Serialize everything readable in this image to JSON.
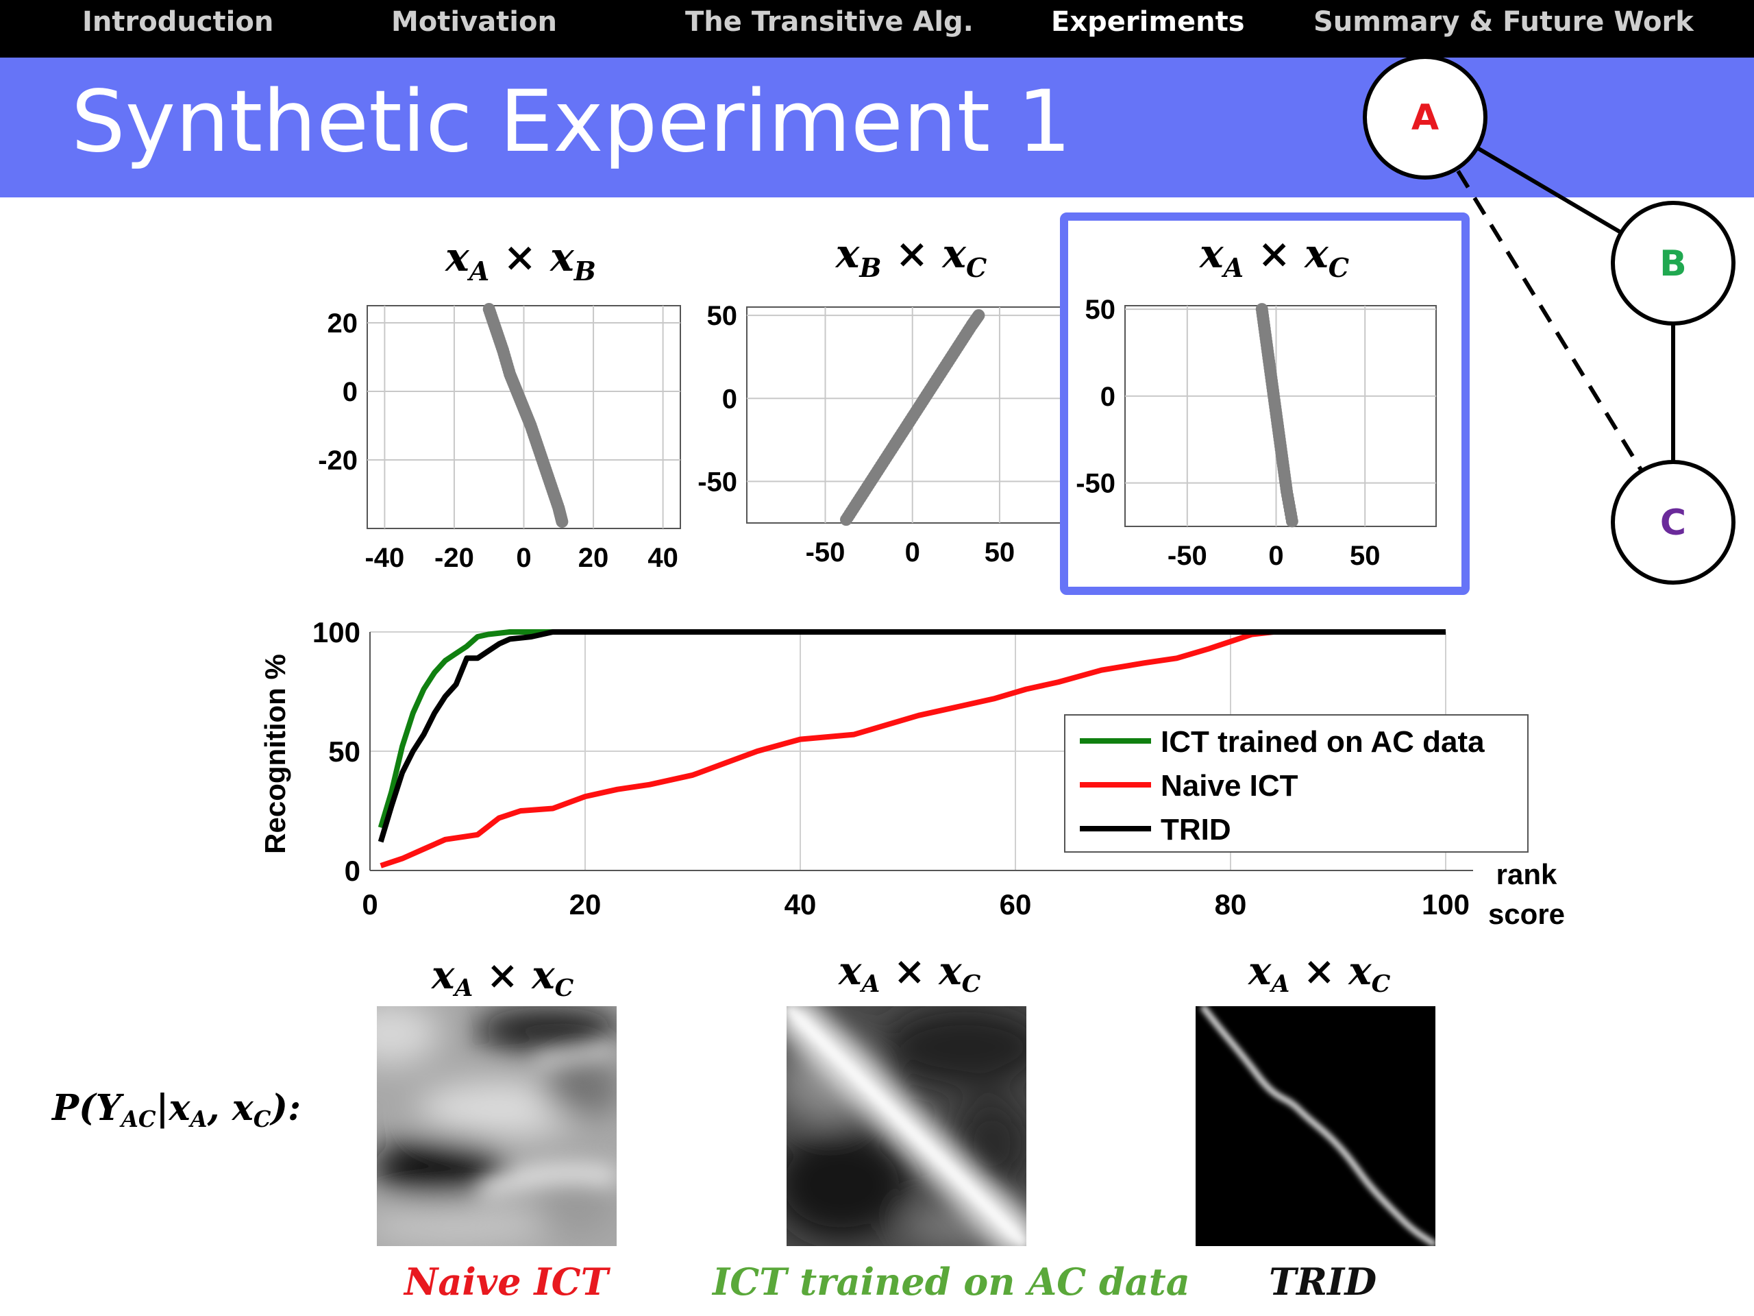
{
  "nav": {
    "items": [
      {
        "label": "Introduction",
        "active": false
      },
      {
        "label": "Motivation",
        "active": false
      },
      {
        "label": "The Transitive Alg.",
        "active": false
      },
      {
        "label": "Experiments",
        "active": true
      },
      {
        "label": "Summary & Future Work",
        "active": false
      }
    ]
  },
  "slide": {
    "title": "Synthetic Experiment 1",
    "accent_color": "#6674f7"
  },
  "graph": {
    "nodes": [
      {
        "label": "A",
        "color": "#e8191f"
      },
      {
        "label": "B",
        "color": "#20a850"
      },
      {
        "label": "C",
        "color": "#6a2a9a"
      }
    ],
    "edges": [
      {
        "from": "A",
        "to": "B",
        "style": "solid"
      },
      {
        "from": "B",
        "to": "C",
        "style": "solid"
      },
      {
        "from": "A",
        "to": "C",
        "style": "dashed"
      }
    ]
  },
  "chart_data": [
    {
      "type": "scatter",
      "title": {
        "var1": "x",
        "sub1": "A",
        "var2": "x",
        "sub2": "B"
      },
      "xlim": [
        -45,
        45
      ],
      "ylim": [
        -40,
        25
      ],
      "xticks": [
        -40,
        -20,
        0,
        20,
        40
      ],
      "yticks": [
        -20,
        0,
        20
      ],
      "grid": true,
      "highlighted": false,
      "color": "#808080",
      "points": [
        [
          -10,
          24
        ],
        [
          -8,
          18
        ],
        [
          -6,
          12
        ],
        [
          -4,
          5
        ],
        [
          -2,
          0
        ],
        [
          0,
          -5
        ],
        [
          2,
          -10
        ],
        [
          4,
          -16
        ],
        [
          6,
          -22
        ],
        [
          8,
          -28
        ],
        [
          10,
          -34
        ],
        [
          11,
          -38
        ]
      ]
    },
    {
      "type": "scatter",
      "title": {
        "var1": "x",
        "sub1": "B",
        "var2": "x",
        "sub2": "C"
      },
      "xlim": [
        -95,
        85
      ],
      "ylim": [
        -75,
        55
      ],
      "xticks": [
        -50,
        0,
        50
      ],
      "yticks": [
        -50,
        0,
        50
      ],
      "grid": true,
      "highlighted": false,
      "color": "#808080",
      "points": [
        [
          -38,
          -73
        ],
        [
          -30,
          -60
        ],
        [
          -22,
          -47
        ],
        [
          -14,
          -34
        ],
        [
          -6,
          -21
        ],
        [
          2,
          -8
        ],
        [
          10,
          5
        ],
        [
          18,
          18
        ],
        [
          26,
          31
        ],
        [
          34,
          44
        ],
        [
          38,
          50
        ]
      ]
    },
    {
      "type": "scatter",
      "title": {
        "var1": "x",
        "sub1": "A",
        "var2": "x",
        "sub2": "C"
      },
      "xlim": [
        -85,
        90
      ],
      "ylim": [
        -75,
        52
      ],
      "xticks": [
        -50,
        0,
        50
      ],
      "yticks": [
        -50,
        0,
        50
      ],
      "grid": true,
      "highlighted": true,
      "color": "#808080",
      "points": [
        [
          -8,
          50
        ],
        [
          -6,
          35
        ],
        [
          -4,
          20
        ],
        [
          -2,
          5
        ],
        [
          0,
          -10
        ],
        [
          2,
          -25
        ],
        [
          4,
          -40
        ],
        [
          6,
          -55
        ],
        [
          9,
          -72
        ]
      ]
    },
    {
      "type": "line",
      "ylabel": "Recognition %",
      "xlabel": "rank score",
      "xlim": [
        0,
        100
      ],
      "ylim": [
        0,
        100
      ],
      "xticks": [
        0,
        20,
        40,
        60,
        80,
        100
      ],
      "yticks": [
        0,
        50,
        100
      ],
      "grid": true,
      "legend": "bottom-right",
      "series": [
        {
          "name": "ICT trained on AC data",
          "color": "#108010",
          "x": [
            1,
            2,
            3,
            4,
            5,
            6,
            7,
            8,
            9,
            10,
            11,
            13,
            15,
            100
          ],
          "y": [
            18,
            33,
            52,
            66,
            76,
            83,
            88,
            91,
            94,
            98,
            99,
            100,
            100,
            100
          ]
        },
        {
          "name": "Naive ICT",
          "color": "#ff1010",
          "x": [
            1,
            3,
            5,
            7,
            10,
            12,
            14,
            17,
            20,
            23,
            26,
            30,
            33,
            36,
            40,
            45,
            48,
            51,
            55,
            58,
            61,
            64,
            68,
            72,
            75,
            78,
            80,
            82,
            84,
            100
          ],
          "y": [
            2,
            5,
            9,
            13,
            15,
            22,
            25,
            26,
            31,
            34,
            36,
            40,
            45,
            50,
            55,
            57,
            61,
            65,
            69,
            72,
            76,
            79,
            84,
            87,
            89,
            93,
            96,
            99,
            100,
            100
          ]
        },
        {
          "name": "TRID",
          "color": "#000000",
          "x": [
            1,
            2,
            3,
            4,
            5,
            6,
            7,
            8,
            9,
            10,
            11,
            12,
            13,
            15,
            17,
            100
          ],
          "y": [
            12,
            27,
            41,
            50,
            57,
            66,
            73,
            78,
            89,
            89,
            92,
            95,
            97,
            98,
            100,
            100
          ]
        }
      ]
    }
  ],
  "bottom": {
    "prob_label": {
      "fn": "P",
      "y": "Y",
      "ysub": "AC",
      "x1": "x",
      "x1sub": "A",
      "x2": "x",
      "x2sub": "C"
    },
    "maps": [
      {
        "title": {
          "var1": "x",
          "sub1": "A",
          "var2": "x",
          "sub2": "C"
        },
        "caption": "Naive ICT",
        "caption_color": "#e8191f"
      },
      {
        "title": {
          "var1": "x",
          "sub1": "A",
          "var2": "x",
          "sub2": "C"
        },
        "caption": "ICT trained on AC data",
        "caption_color": "#5aa83a"
      },
      {
        "title": {
          "var1": "x",
          "sub1": "A",
          "var2": "x",
          "sub2": "C"
        },
        "caption": "TRID",
        "caption_color": "#111111"
      }
    ]
  }
}
